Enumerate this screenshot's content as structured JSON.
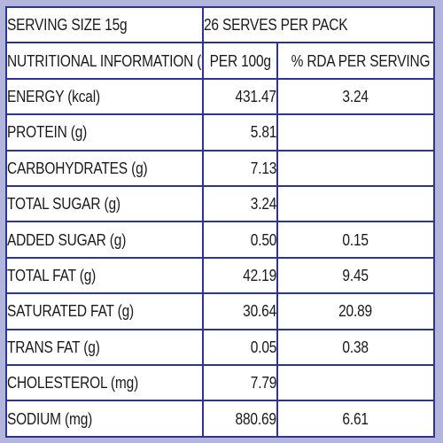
{
  "header": {
    "serving_size": "SERVING SIZE 15g",
    "serves_per_pack": "26 SERVES PER PACK"
  },
  "columns": {
    "nutrient": "NUTRITIONAL INFORMATION (*)",
    "per100g": "PER 100g",
    "rda": "% RDA PER SERVING (#)"
  },
  "rows": [
    {
      "name": "ENERGY (kcal)",
      "per100g": "431.47",
      "rda": "3.24"
    },
    {
      "name": "PROTEIN (g)",
      "per100g": "5.81",
      "rda": ""
    },
    {
      "name": "CARBOHYDRATES (g)",
      "per100g": "7.13",
      "rda": ""
    },
    {
      "name": "TOTAL SUGAR (g)",
      "per100g": "3.24",
      "rda": ""
    },
    {
      "name": "ADDED SUGAR (g)",
      "per100g": "0.50",
      "rda": "0.15"
    },
    {
      "name": "TOTAL FAT (g)",
      "per100g": "42.19",
      "rda": "9.45"
    },
    {
      "name": "SATURATED FAT (g)",
      "per100g": "30.64",
      "rda": "20.89"
    },
    {
      "name": "TRANS FAT (g)",
      "per100g": "0.05",
      "rda": "0.38"
    },
    {
      "name": "CHOLESTEROL (mg)",
      "per100g": "7.79",
      "rda": ""
    },
    {
      "name": "SODIUM (mg)",
      "per100g": "880.69",
      "rda": "6.61"
    }
  ],
  "colors": {
    "border": "#2e3590",
    "frame": "#b3b5dd",
    "text": "#1a1a1a"
  }
}
